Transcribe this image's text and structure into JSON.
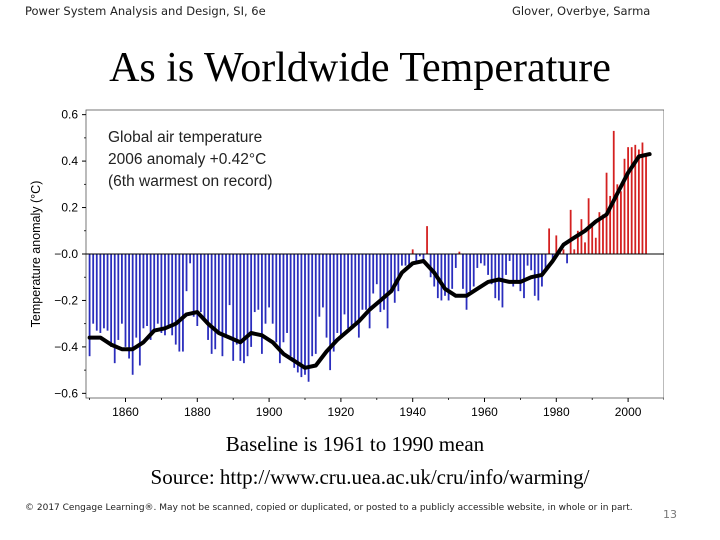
{
  "header": {
    "left": "Power System Analysis and Design, SI, 6e",
    "right": "Glover, Overbye, Sarma"
  },
  "slide": {
    "title": "As is Worldwide Temperature",
    "caption_line1": "Baseline is 1961 to 1990 mean",
    "caption_line2": "Source: http://www.cru.uea.ac.uk/cru/info/warming/",
    "footer": "© 2017 Cengage Learning®. May not be scanned, copied or duplicated, or posted to a publicly accessible website, in whole or in part.",
    "page_number": "13"
  },
  "colors": {
    "negative_bar": "#2a2dbd",
    "positive_bar": "#d42020",
    "smooth_line": "#000000",
    "zero_line": "#000000"
  },
  "chart_data": {
    "type": "bar",
    "title_lines": [
      "Global air temperature",
      "2006 anomaly +0.42°C",
      "(6th warmest on record)"
    ],
    "xlabel": "",
    "ylabel": "Temperature anomaly (°C)",
    "xlim": [
      1849,
      2010
    ],
    "ylim": [
      -0.62,
      0.62
    ],
    "xticks": [
      1860,
      1880,
      1900,
      1920,
      1940,
      1960,
      1980,
      2000
    ],
    "yticks": [
      -0.6,
      -0.4,
      -0.2,
      0.0,
      0.2,
      0.4,
      0.6
    ],
    "ytick_labels": [
      "−0.6",
      "−0.4",
      "−0.2",
      "−0.0",
      "0.2",
      "0.4",
      "0.6"
    ],
    "x_start_year": 1850,
    "annual_anomalies": [
      -0.44,
      -0.3,
      -0.33,
      -0.34,
      -0.32,
      -0.33,
      -0.4,
      -0.47,
      -0.37,
      -0.3,
      -0.4,
      -0.45,
      -0.52,
      -0.36,
      -0.48,
      -0.32,
      -0.31,
      -0.37,
      -0.33,
      -0.3,
      -0.34,
      -0.35,
      -0.31,
      -0.35,
      -0.39,
      -0.42,
      -0.42,
      -0.16,
      -0.04,
      -0.27,
      -0.31,
      -0.25,
      -0.28,
      -0.37,
      -0.43,
      -0.41,
      -0.34,
      -0.44,
      -0.36,
      -0.22,
      -0.46,
      -0.39,
      -0.46,
      -0.47,
      -0.44,
      -0.4,
      -0.25,
      -0.24,
      -0.43,
      -0.3,
      -0.23,
      -0.3,
      -0.38,
      -0.47,
      -0.38,
      -0.34,
      -0.44,
      -0.49,
      -0.51,
      -0.53,
      -0.52,
      -0.55,
      -0.44,
      -0.43,
      -0.27,
      -0.23,
      -0.36,
      -0.5,
      -0.42,
      -0.34,
      -0.36,
      -0.26,
      -0.32,
      -0.31,
      -0.31,
      -0.36,
      -0.24,
      -0.24,
      -0.32,
      -0.17,
      -0.13,
      -0.25,
      -0.24,
      -0.32,
      -0.15,
      -0.21,
      -0.16,
      -0.05,
      -0.05,
      -0.05,
      0.02,
      -0.03,
      -0.01,
      -0.04,
      0.12,
      -0.1,
      -0.14,
      -0.19,
      -0.2,
      -0.18,
      -0.2,
      -0.15,
      -0.06,
      0.01,
      -0.15,
      -0.24,
      -0.16,
      -0.14,
      -0.06,
      -0.04,
      -0.05,
      -0.09,
      -0.13,
      -0.19,
      -0.2,
      -0.23,
      -0.09,
      -0.03,
      -0.14,
      -0.12,
      -0.16,
      -0.19,
      -0.05,
      -0.07,
      -0.18,
      -0.2,
      -0.14,
      -0.06,
      0.11,
      -0.04,
      0.08,
      0.02,
      0.02,
      -0.04,
      0.19,
      0.02,
      0.1,
      0.15,
      0.05,
      0.24,
      0.13,
      0.07,
      0.18,
      0.17,
      0.35,
      0.25,
      0.53,
      0.3,
      0.27,
      0.41,
      0.46,
      0.46,
      0.47,
      0.45,
      0.48,
      0.42
    ],
    "smoothed_curve": [
      [
        1850,
        -0.36
      ],
      [
        1853,
        -0.36
      ],
      [
        1856,
        -0.39
      ],
      [
        1859,
        -0.41
      ],
      [
        1862,
        -0.41
      ],
      [
        1865,
        -0.38
      ],
      [
        1868,
        -0.33
      ],
      [
        1871,
        -0.32
      ],
      [
        1874,
        -0.3
      ],
      [
        1877,
        -0.26
      ],
      [
        1880,
        -0.25
      ],
      [
        1883,
        -0.3
      ],
      [
        1886,
        -0.34
      ],
      [
        1889,
        -0.36
      ],
      [
        1892,
        -0.38
      ],
      [
        1895,
        -0.34
      ],
      [
        1898,
        -0.35
      ],
      [
        1901,
        -0.38
      ],
      [
        1904,
        -0.43
      ],
      [
        1907,
        -0.46
      ],
      [
        1910,
        -0.49
      ],
      [
        1913,
        -0.48
      ],
      [
        1916,
        -0.42
      ],
      [
        1919,
        -0.37
      ],
      [
        1922,
        -0.33
      ],
      [
        1925,
        -0.29
      ],
      [
        1928,
        -0.24
      ],
      [
        1931,
        -0.2
      ],
      [
        1934,
        -0.16
      ],
      [
        1937,
        -0.08
      ],
      [
        1940,
        -0.04
      ],
      [
        1943,
        -0.03
      ],
      [
        1946,
        -0.08
      ],
      [
        1949,
        -0.15
      ],
      [
        1952,
        -0.18
      ],
      [
        1955,
        -0.18
      ],
      [
        1958,
        -0.15
      ],
      [
        1961,
        -0.12
      ],
      [
        1964,
        -0.11
      ],
      [
        1967,
        -0.12
      ],
      [
        1970,
        -0.12
      ],
      [
        1973,
        -0.1
      ],
      [
        1976,
        -0.09
      ],
      [
        1979,
        -0.03
      ],
      [
        1982,
        0.04
      ],
      [
        1985,
        0.07
      ],
      [
        1988,
        0.1
      ],
      [
        1991,
        0.14
      ],
      [
        1994,
        0.17
      ],
      [
        1997,
        0.26
      ],
      [
        2000,
        0.35
      ],
      [
        2003,
        0.42
      ],
      [
        2006,
        0.43
      ]
    ]
  }
}
